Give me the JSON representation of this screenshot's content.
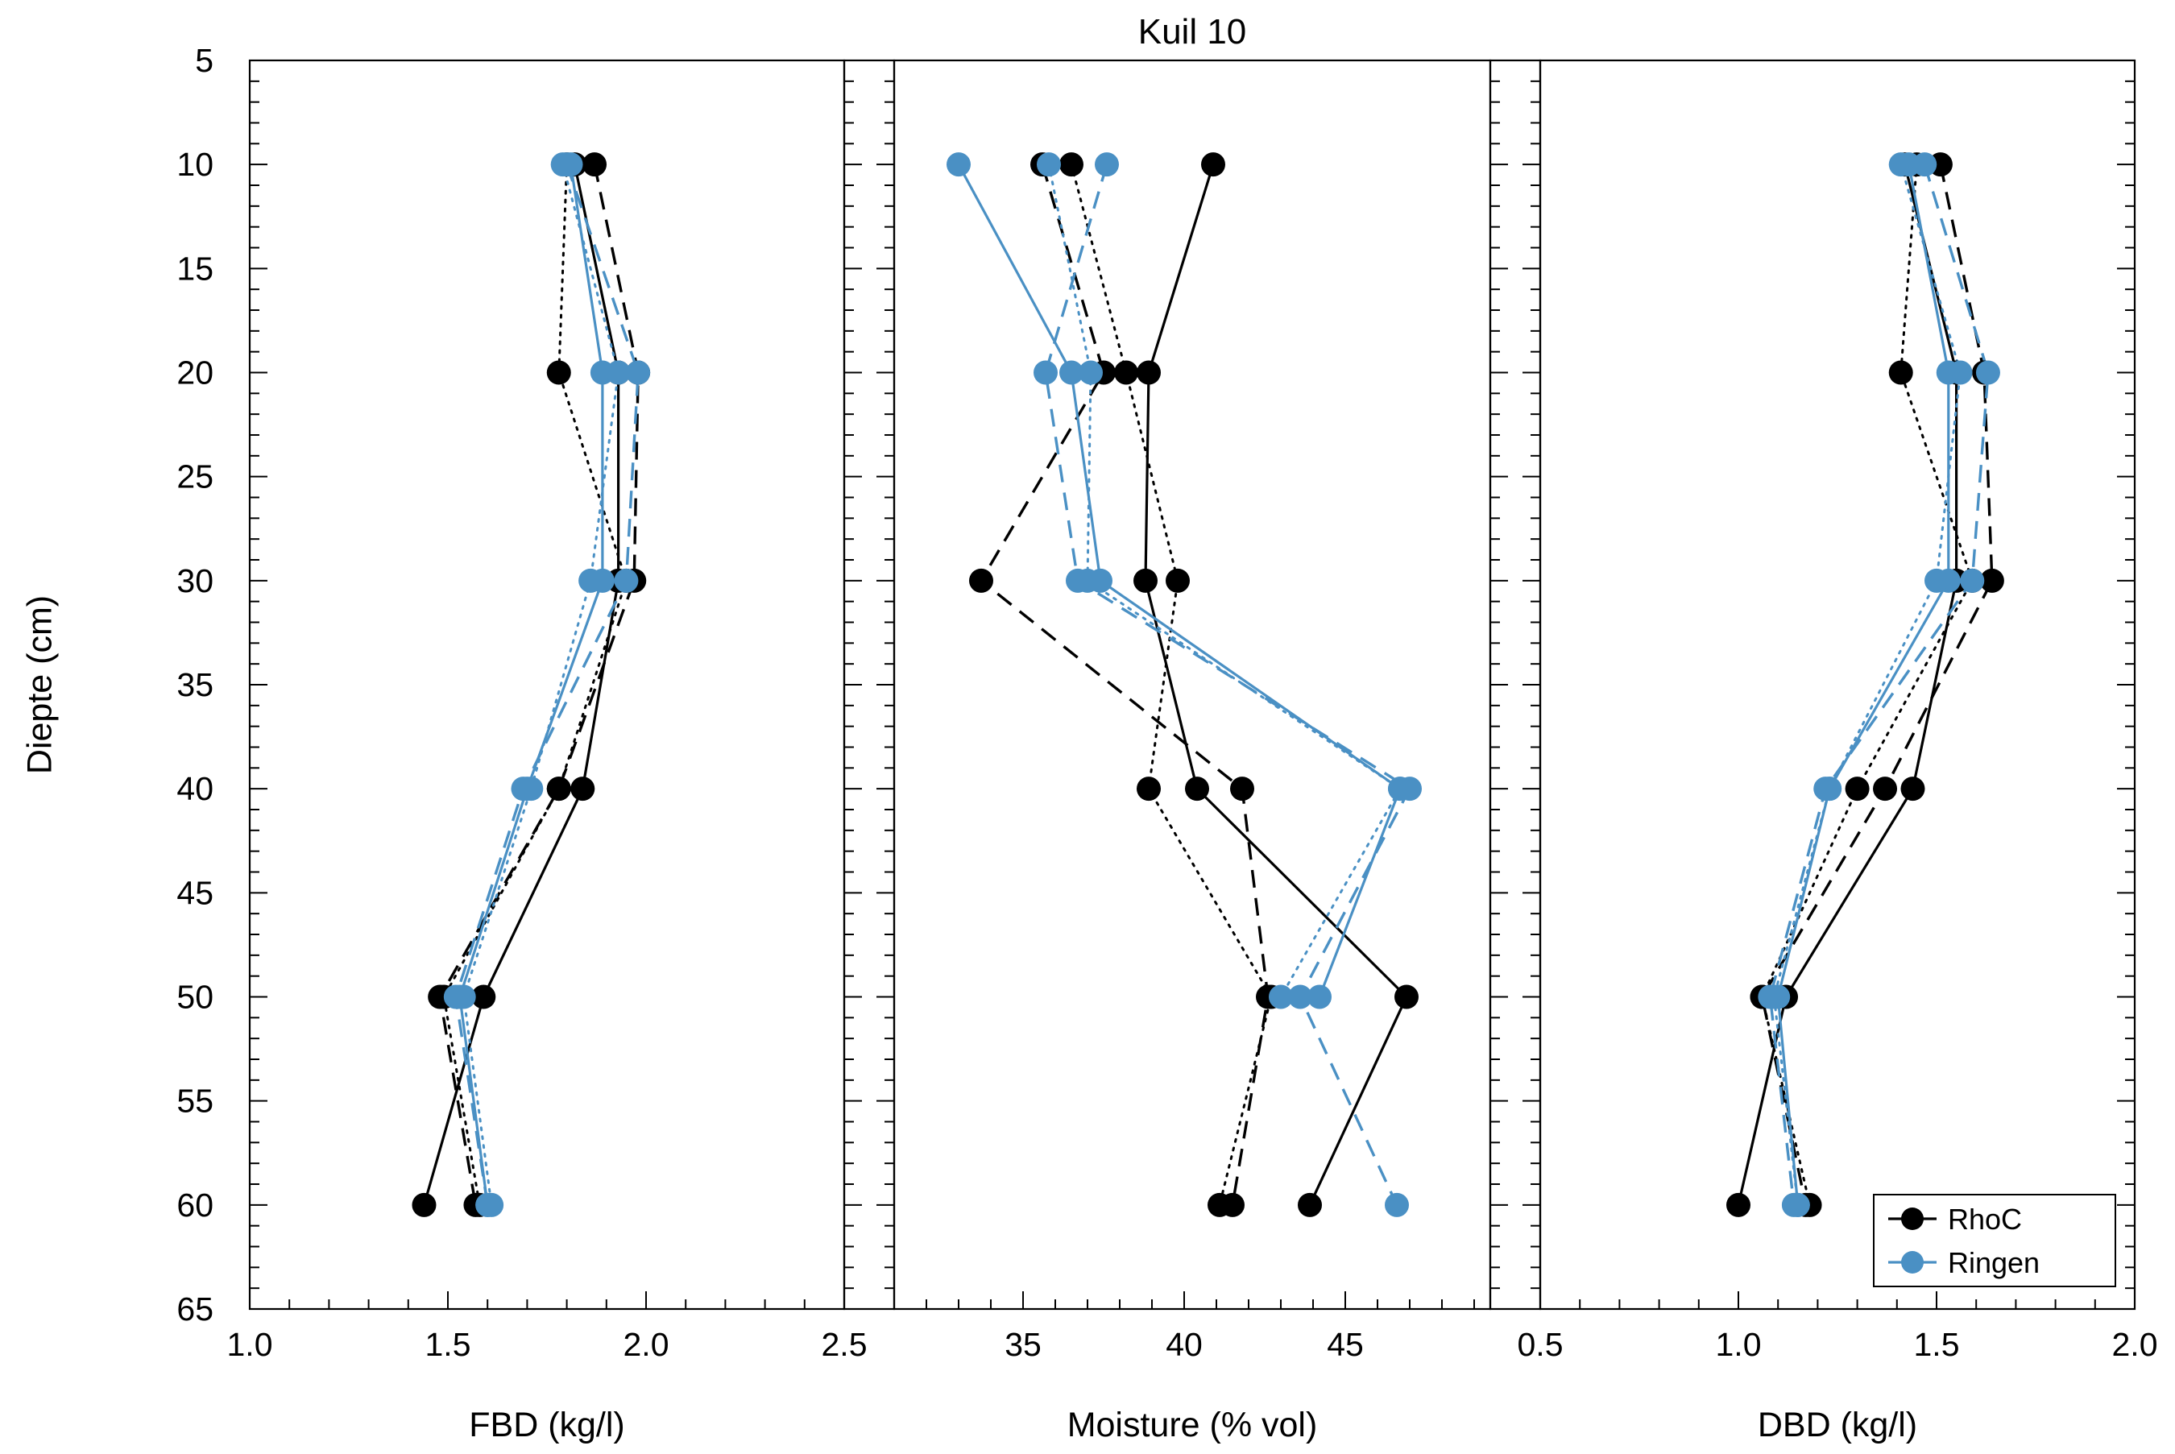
{
  "colors": {
    "RhoC": "#000000",
    "Ringen": "#4a90c4"
  },
  "chart_data": {
    "type": "line",
    "title": "Kuil 10",
    "ylabel": "Diepte (cm)",
    "ylim": [
      65,
      5
    ],
    "yticks": [
      5,
      10,
      15,
      20,
      25,
      30,
      35,
      40,
      45,
      50,
      55,
      60,
      65
    ],
    "ytick_labels": [
      "5",
      "10",
      "15",
      "20",
      "25",
      "30",
      "35",
      "40",
      "45",
      "50",
      "55",
      "60",
      "65"
    ],
    "legend": {
      "position": "bottom-right",
      "entries": [
        "RhoC",
        "Ringen"
      ]
    },
    "panels": [
      {
        "name": "fbd",
        "xlabel": "FBD (kg/l)",
        "xlim": [
          1.0,
          2.5
        ],
        "xticks": [
          1.0,
          1.5,
          2.0,
          2.5
        ],
        "xtick_labels": [
          "1.0",
          "1.5",
          "2.0",
          "2.5"
        ],
        "series": [
          {
            "name": "RhoC",
            "style": "solid",
            "points": [
              [
                1.82,
                10
              ],
              [
                1.93,
                20
              ],
              [
                1.93,
                30
              ],
              [
                1.84,
                40
              ],
              [
                1.59,
                50
              ],
              [
                1.44,
                60
              ]
            ]
          },
          {
            "name": "RhoC",
            "style": "dashed",
            "points": [
              [
                1.87,
                10
              ],
              [
                1.98,
                20
              ],
              [
                1.97,
                30
              ],
              [
                1.78,
                40
              ],
              [
                1.48,
                50
              ],
              [
                1.57,
                60
              ]
            ]
          },
          {
            "name": "RhoC",
            "style": "dotted",
            "points": [
              [
                1.8,
                10
              ],
              [
                1.78,
                20
              ],
              [
                1.95,
                30
              ],
              [
                1.78,
                40
              ],
              [
                1.49,
                50
              ],
              [
                1.58,
                60
              ]
            ]
          },
          {
            "name": "Ringen",
            "style": "solid",
            "points": [
              [
                1.81,
                10
              ],
              [
                1.89,
                20
              ],
              [
                1.89,
                30
              ],
              [
                1.7,
                40
              ],
              [
                1.53,
                50
              ],
              [
                1.6,
                60
              ]
            ]
          },
          {
            "name": "Ringen",
            "style": "dashed",
            "points": [
              [
                1.8,
                10
              ],
              [
                1.98,
                20
              ],
              [
                1.95,
                30
              ],
              [
                1.69,
                40
              ],
              [
                1.52,
                50
              ],
              [
                1.6,
                60
              ]
            ]
          },
          {
            "name": "Ringen",
            "style": "dotted",
            "points": [
              [
                1.79,
                10
              ],
              [
                1.93,
                20
              ],
              [
                1.86,
                30
              ],
              [
                1.71,
                40
              ],
              [
                1.54,
                50
              ],
              [
                1.61,
                60
              ]
            ]
          }
        ]
      },
      {
        "name": "moisture",
        "xlabel": "Moisture (% vol)",
        "xlim": [
          31,
          49.5
        ],
        "xticks": [
          35,
          40,
          45
        ],
        "xtick_labels": [
          "35",
          "40",
          "45"
        ],
        "series": [
          {
            "name": "RhoC",
            "style": "solid",
            "points": [
              [
                40.9,
                10
              ],
              [
                38.9,
                20
              ],
              [
                38.8,
                30
              ],
              [
                40.4,
                40
              ],
              [
                46.9,
                50
              ],
              [
                43.9,
                60
              ]
            ]
          },
          {
            "name": "RhoC",
            "style": "dashed",
            "points": [
              [
                35.6,
                10
              ],
              [
                37.5,
                20
              ],
              [
                33.7,
                30
              ],
              [
                41.8,
                40
              ],
              [
                42.6,
                50
              ],
              [
                41.5,
                60
              ]
            ]
          },
          {
            "name": "RhoC",
            "style": "dotted",
            "points": [
              [
                36.5,
                10
              ],
              [
                38.2,
                20
              ],
              [
                39.8,
                30
              ],
              [
                38.9,
                40
              ],
              [
                42.7,
                50
              ],
              [
                41.1,
                60
              ]
            ]
          },
          {
            "name": "Ringen",
            "style": "solid",
            "points": [
              [
                33.0,
                10
              ],
              [
                36.5,
                20
              ],
              [
                37.4,
                30
              ],
              [
                46.7,
                40
              ],
              [
                44.2,
                50
              ]
            ]
          },
          {
            "name": "Ringen",
            "style": "dashed",
            "points": [
              [
                37.6,
                10
              ],
              [
                35.7,
                20
              ],
              [
                36.7,
                30
              ],
              [
                47.0,
                40
              ],
              [
                43.6,
                50
              ],
              [
                46.6,
                60
              ]
            ]
          },
          {
            "name": "Ringen",
            "style": "dotted",
            "points": [
              [
                35.8,
                10
              ],
              [
                37.1,
                20
              ],
              [
                37.0,
                30
              ],
              [
                46.7,
                40
              ],
              [
                43.0,
                50
              ]
            ]
          }
        ]
      },
      {
        "name": "dbd",
        "xlabel": "DBD (kg/l)",
        "xlim": [
          0.5,
          2.0
        ],
        "xticks": [
          0.5,
          1.0,
          1.5,
          2.0
        ],
        "xtick_labels": [
          "0.5",
          "1.0",
          "1.5",
          "2.0"
        ],
        "series": [
          {
            "name": "RhoC",
            "style": "solid",
            "points": [
              [
                1.42,
                10
              ],
              [
                1.55,
                20
              ],
              [
                1.55,
                30
              ],
              [
                1.44,
                40
              ],
              [
                1.12,
                50
              ],
              [
                1.0,
                60
              ]
            ]
          },
          {
            "name": "RhoC",
            "style": "dashed",
            "points": [
              [
                1.51,
                10
              ],
              [
                1.62,
                20
              ],
              [
                1.64,
                30
              ],
              [
                1.37,
                40
              ],
              [
                1.06,
                50
              ],
              [
                1.17,
                60
              ]
            ]
          },
          {
            "name": "RhoC",
            "style": "dotted",
            "points": [
              [
                1.45,
                10
              ],
              [
                1.41,
                20
              ],
              [
                1.59,
                30
              ],
              [
                1.3,
                40
              ],
              [
                1.06,
                50
              ],
              [
                1.18,
                60
              ]
            ]
          },
          {
            "name": "Ringen",
            "style": "solid",
            "points": [
              [
                1.43,
                10
              ],
              [
                1.53,
                20
              ],
              [
                1.53,
                30
              ],
              [
                1.23,
                40
              ],
              [
                1.1,
                50
              ],
              [
                1.15,
                60
              ]
            ]
          },
          {
            "name": "Ringen",
            "style": "dashed",
            "points": [
              [
                1.47,
                10
              ],
              [
                1.63,
                20
              ],
              [
                1.59,
                30
              ],
              [
                1.22,
                40
              ],
              [
                1.08,
                50
              ],
              [
                1.14,
                60
              ]
            ]
          },
          {
            "name": "Ringen",
            "style": "dotted",
            "points": [
              [
                1.41,
                10
              ],
              [
                1.56,
                20
              ],
              [
                1.5,
                30
              ],
              [
                1.23,
                40
              ],
              [
                1.09,
                50
              ],
              [
                1.15,
                60
              ]
            ]
          }
        ]
      }
    ]
  }
}
